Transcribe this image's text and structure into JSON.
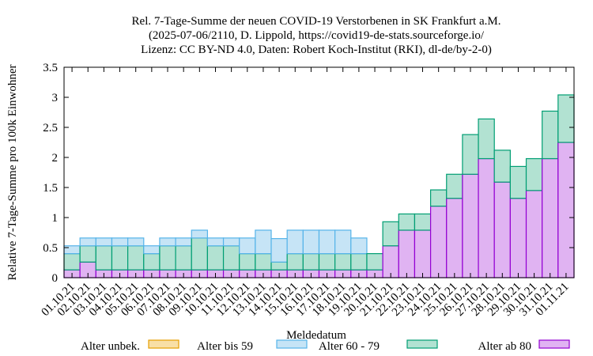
{
  "chart_data": {
    "type": "bar",
    "stacked": true,
    "title_lines": [
      "Rel. 7-Tage-Summe der neuen COVID-19 Verstorbenen in SK Frankfurt a.M.",
      "(2025-07-06/2110, D. Lippold, https://covid19-de-stats.sourceforge.io/",
      "Lizenz: CC BY-ND 4.0, Daten: Robert Koch-Institut (RKI), dl-de/by-2-0)"
    ],
    "xlabel": "Meldedatum",
    "ylabel": "Relative 7-Tage-Summe pro 100k Einwohner",
    "ylim": [
      0,
      3.5
    ],
    "yticks": [
      0,
      0.5,
      1,
      1.5,
      2,
      2.5,
      3,
      3.5
    ],
    "ytick_labels": [
      "0",
      "0.5",
      "1",
      "1.5",
      "2",
      "2.5",
      "3",
      "3.5"
    ],
    "grid": false,
    "legend_position": "bottom",
    "categories": [
      "01.10.21",
      "02.10.21",
      "03.10.21",
      "04.10.21",
      "05.10.21",
      "06.10.21",
      "07.10.21",
      "08.10.21",
      "09.10.21",
      "10.10.21",
      "11.10.21",
      "12.10.21",
      "13.10.21",
      "14.10.21",
      "15.10.21",
      "16.10.21",
      "17.10.21",
      "18.10.21",
      "19.10.21",
      "20.10.21",
      "21.10.21",
      "22.10.21",
      "23.10.21",
      "24.10.21",
      "25.10.21",
      "26.10.21",
      "27.10.21",
      "28.10.21",
      "29.10.21",
      "30.10.21",
      "31.10.21",
      "01.11.21"
    ],
    "series": [
      {
        "name": "Alter unbek.",
        "fill": "#f8dfa6",
        "stroke": "#e69f00",
        "values": [
          0,
          0,
          0,
          0,
          0,
          0,
          0,
          0,
          0,
          0,
          0,
          0,
          0,
          0,
          0,
          0,
          0,
          0,
          0,
          0,
          0,
          0,
          0,
          0,
          0,
          0,
          0,
          0,
          0,
          0,
          0,
          0
        ]
      },
      {
        "name": "Alter bis 59",
        "fill": "#c6e4f6",
        "stroke": "#56b4e9",
        "values": [
          0.13,
          0.13,
          0.13,
          0.13,
          0.13,
          0.13,
          0.13,
          0.13,
          0.13,
          0.13,
          0.13,
          0.26,
          0.39,
          0.39,
          0.39,
          0.39,
          0.39,
          0.39,
          0.26,
          0,
          0,
          0,
          0,
          0,
          0,
          0,
          0,
          0,
          0,
          0,
          0,
          0
        ]
      },
      {
        "name": "Alter 60 - 79",
        "fill": "#b2e2d2",
        "stroke": "#009e73",
        "values": [
          0.27,
          0.27,
          0.4,
          0.4,
          0.4,
          0.27,
          0.4,
          0.4,
          0.53,
          0.4,
          0.4,
          0.27,
          0.27,
          0.13,
          0.27,
          0.27,
          0.27,
          0.27,
          0.27,
          0.27,
          0.4,
          0.27,
          0.27,
          0.27,
          0.4,
          0.66,
          0.66,
          0.53,
          0.53,
          0.53,
          0.79,
          0.79
        ]
      },
      {
        "name": "Alter ab 80",
        "fill": "#e0b3f2",
        "stroke": "#9400d3",
        "values": [
          0.13,
          0.26,
          0.13,
          0.13,
          0.13,
          0.13,
          0.13,
          0.13,
          0.13,
          0.13,
          0.13,
          0.13,
          0.13,
          0.13,
          0.13,
          0.13,
          0.13,
          0.13,
          0.13,
          0.13,
          0.53,
          0.79,
          0.79,
          1.19,
          1.32,
          1.72,
          1.98,
          1.59,
          1.32,
          1.45,
          1.98,
          2.25
        ]
      }
    ]
  }
}
